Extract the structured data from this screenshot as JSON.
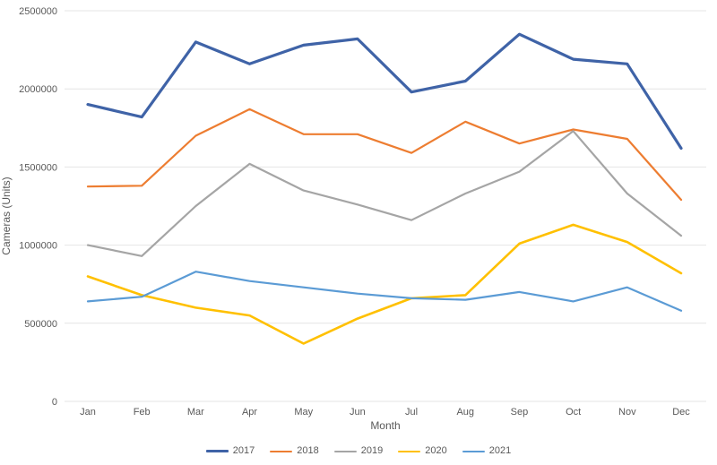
{
  "chart_data": {
    "type": "line",
    "title": "",
    "xlabel": "Month",
    "ylabel": "Cameras (Units)",
    "x": [
      "Jan",
      "Feb",
      "Mar",
      "Apr",
      "May",
      "Jun",
      "Jul",
      "Aug",
      "Sep",
      "Oct",
      "Nov",
      "Dec"
    ],
    "series": [
      {
        "name": "2017",
        "color": "#3F63A7",
        "line_width": 3.2,
        "values": [
          1900000,
          1820000,
          2300000,
          2160000,
          2280000,
          2320000,
          1980000,
          2050000,
          2350000,
          2190000,
          2160000,
          1620000
        ]
      },
      {
        "name": "2018",
        "color": "#ED7D31",
        "line_width": 2.2,
        "values": [
          1375000,
          1380000,
          1700000,
          1870000,
          1710000,
          1710000,
          1590000,
          1790000,
          1650000,
          1740000,
          1680000,
          1290000
        ]
      },
      {
        "name": "2019",
        "color": "#A5A5A5",
        "line_width": 2.2,
        "values": [
          1000000,
          930000,
          1250000,
          1520000,
          1350000,
          1260000,
          1160000,
          1330000,
          1470000,
          1730000,
          1330000,
          1060000
        ]
      },
      {
        "name": "2020",
        "color": "#FFC000",
        "line_width": 2.6,
        "values": [
          800000,
          680000,
          600000,
          550000,
          370000,
          530000,
          660000,
          680000,
          1010000,
          1130000,
          1020000,
          820000
        ]
      },
      {
        "name": "2021",
        "color": "#5B9BD5",
        "line_width": 2.2,
        "values": [
          640000,
          670000,
          830000,
          770000,
          730000,
          690000,
          660000,
          650000,
          700000,
          640000,
          730000,
          580000
        ]
      }
    ],
    "ylim": [
      0,
      2500000
    ],
    "ytick_step": 500000,
    "ytick_labels": [
      "0",
      "500000",
      "1000000",
      "1500000",
      "2000000",
      "2500000"
    ],
    "grid": true,
    "legend_position": "bottom",
    "style": {
      "background": "#ffffff",
      "gridline_color": "#e4e4e4",
      "axis_text_color": "#595959",
      "tick_font_size": 11
    }
  }
}
